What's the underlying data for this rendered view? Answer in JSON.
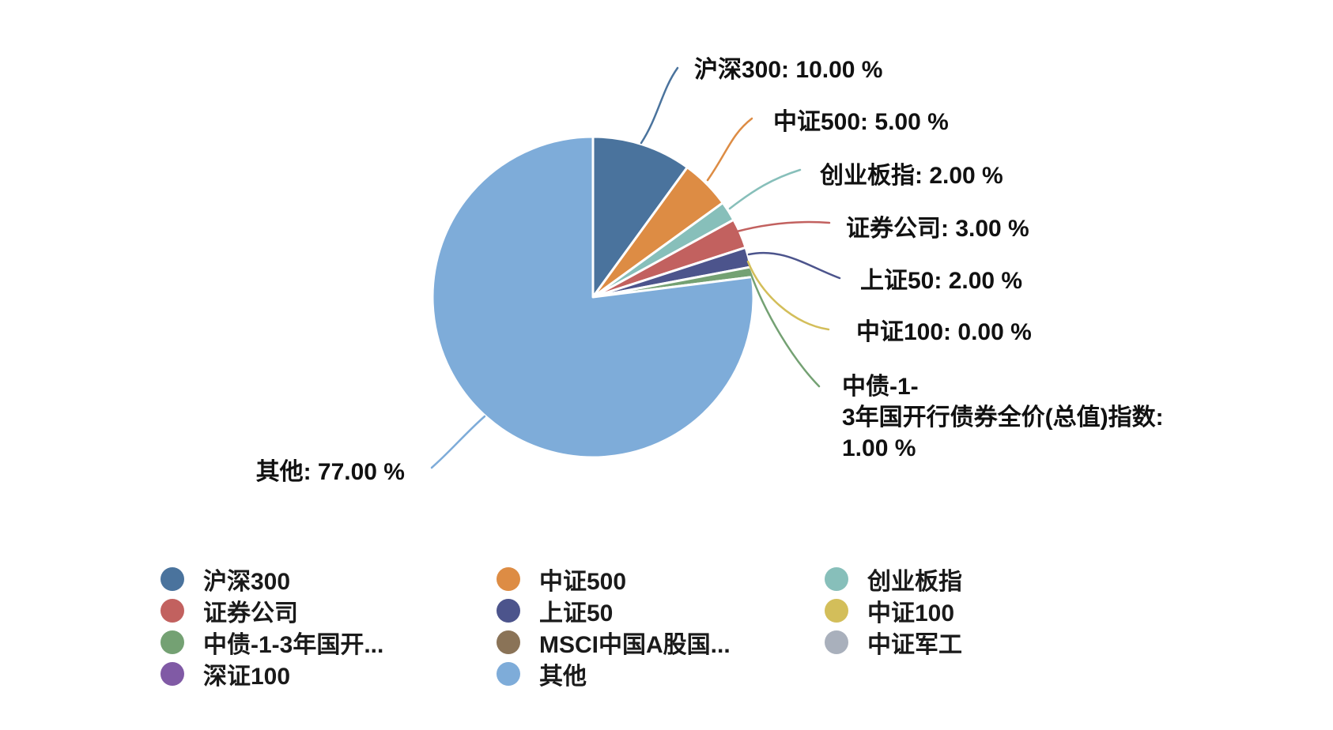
{
  "chart_data": {
    "type": "pie",
    "title": "",
    "unit": "%",
    "legend_position": "bottom",
    "background": "#ffffff",
    "label_text_color": "#111111",
    "slice_border_color": "#ffffff",
    "slices": [
      {
        "name": "沪深300",
        "value": 10.0,
        "color": "#4A739D",
        "callout": "沪深300: 10.00 %"
      },
      {
        "name": "中证500",
        "value": 5.0,
        "color": "#DD8C44",
        "callout": "中证500: 5.00 %"
      },
      {
        "name": "创业板指",
        "value": 2.0,
        "color": "#87BFBA",
        "callout": "创业板指: 2.00 %"
      },
      {
        "name": "证券公司",
        "value": 3.0,
        "color": "#C2615F",
        "callout": "证券公司: 3.00 %"
      },
      {
        "name": "上证50",
        "value": 2.0,
        "color": "#4C548C",
        "callout": "上证50: 2.00 %"
      },
      {
        "name": "中证100",
        "value": 0.0,
        "color": "#D3BE5A",
        "callout": "中证100: 0.00 %"
      },
      {
        "name": "中债-1-3年国开行债券全价(总值)指数",
        "value": 1.0,
        "color": "#74A173",
        "callout_lines": [
          "中债-1-",
          "3年国开行债券全价(总值)指数:",
          "1.00 %"
        ]
      },
      {
        "name": "MSCI中国A股国...",
        "value": 0.0,
        "color": "#8A7357"
      },
      {
        "name": "中证军工",
        "value": 0.0,
        "color": "#A9B0BC"
      },
      {
        "name": "深证100",
        "value": 0.0,
        "color": "#805AA5"
      },
      {
        "name": "其他",
        "value": 77.0,
        "color": "#7EACD9",
        "callout": "其他: 77.00 %"
      }
    ],
    "legend": {
      "columns": [
        [
          {
            "label": "沪深300",
            "color": "#4A739D"
          },
          {
            "label": "证券公司",
            "color": "#C2615F"
          },
          {
            "label": "中债-1-3年国开...",
            "color": "#74A173"
          },
          {
            "label": "深证100",
            "color": "#805AA5"
          }
        ],
        [
          {
            "label": "中证500",
            "color": "#DD8C44"
          },
          {
            "label": "上证50",
            "color": "#4C548C"
          },
          {
            "label": "MSCI中国A股国...",
            "color": "#8A7357"
          },
          {
            "label": "其他",
            "color": "#7EACD9"
          }
        ],
        [
          {
            "label": "创业板指",
            "color": "#87BFBA"
          },
          {
            "label": "中证100",
            "color": "#D3BE5A"
          },
          {
            "label": "中证军工",
            "color": "#A9B0BC"
          }
        ]
      ]
    }
  }
}
